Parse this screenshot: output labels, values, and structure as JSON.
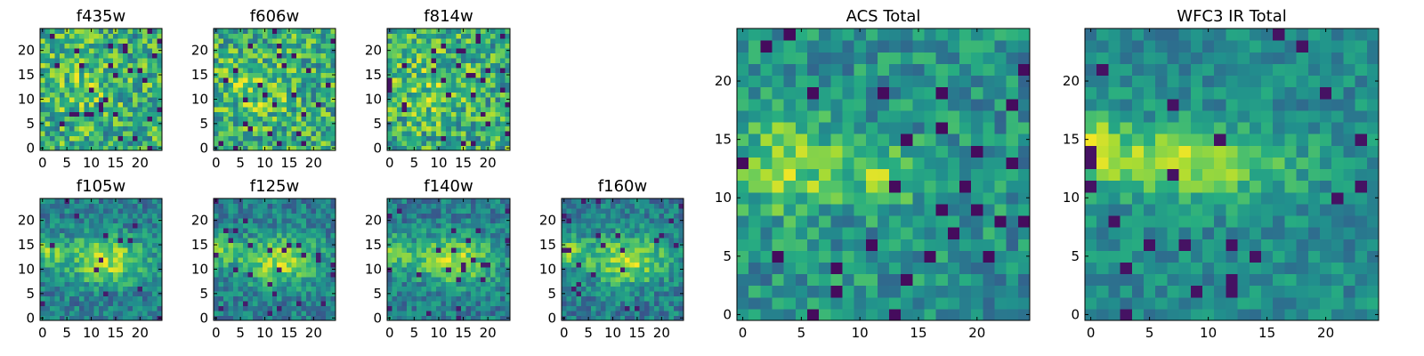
{
  "chart_data": {
    "type": "heatmap",
    "colormap": "viridis",
    "grid": false,
    "panels": [
      {
        "title": "f435w",
        "xlim": [
          0,
          25
        ],
        "ylim": [
          0,
          25
        ],
        "xticks": [
          0,
          5,
          10,
          15,
          20
        ],
        "yticks": [
          0,
          5,
          10,
          15,
          20
        ],
        "seed": 11,
        "structure": "noise"
      },
      {
        "title": "f606w",
        "xlim": [
          0,
          25
        ],
        "ylim": [
          0,
          25
        ],
        "xticks": [
          0,
          5,
          10,
          15,
          20
        ],
        "yticks": [
          0,
          5,
          10,
          15,
          20
        ],
        "seed": 23,
        "structure": "noise"
      },
      {
        "title": "f814w",
        "xlim": [
          0,
          25
        ],
        "ylim": [
          0,
          25
        ],
        "xticks": [
          0,
          5,
          10,
          15,
          20
        ],
        "yticks": [
          0,
          5,
          10,
          15,
          20
        ],
        "seed": 37,
        "structure": "noise"
      },
      {
        "title": "f105w",
        "xlim": [
          0,
          25
        ],
        "ylim": [
          0,
          25
        ],
        "xticks": [
          0,
          5,
          10,
          15,
          20
        ],
        "yticks": [
          0,
          5,
          10,
          15,
          20
        ],
        "seed": 41,
        "structure": "blob"
      },
      {
        "title": "f125w",
        "xlim": [
          0,
          25
        ],
        "ylim": [
          0,
          25
        ],
        "xticks": [
          0,
          5,
          10,
          15,
          20
        ],
        "yticks": [
          0,
          5,
          10,
          15,
          20
        ],
        "seed": 53,
        "structure": "blob"
      },
      {
        "title": "f140w",
        "xlim": [
          0,
          25
        ],
        "ylim": [
          0,
          25
        ],
        "xticks": [
          0,
          5,
          10,
          15,
          20
        ],
        "yticks": [
          0,
          5,
          10,
          15,
          20
        ],
        "seed": 67,
        "structure": "blob"
      },
      {
        "title": "f160w",
        "xlim": [
          0,
          25
        ],
        "ylim": [
          0,
          25
        ],
        "xticks": [
          0,
          5,
          10,
          15,
          20
        ],
        "yticks": [
          0,
          5,
          10,
          15,
          20
        ],
        "seed": 79,
        "structure": "blob"
      },
      {
        "title": "ACS Total",
        "xlim": [
          0,
          25
        ],
        "ylim": [
          0,
          25
        ],
        "xticks": [
          0,
          5,
          10,
          15,
          20
        ],
        "yticks": [
          0,
          5,
          10,
          15,
          20
        ],
        "seed": 97,
        "structure": "acs"
      },
      {
        "title": "WFC3 IR Total",
        "xlim": [
          0,
          25
        ],
        "ylim": [
          0,
          25
        ],
        "xticks": [
          0,
          5,
          10,
          15,
          20
        ],
        "yticks": [
          0,
          5,
          10,
          15,
          20
        ],
        "seed": 103,
        "structure": "ir"
      }
    ]
  }
}
